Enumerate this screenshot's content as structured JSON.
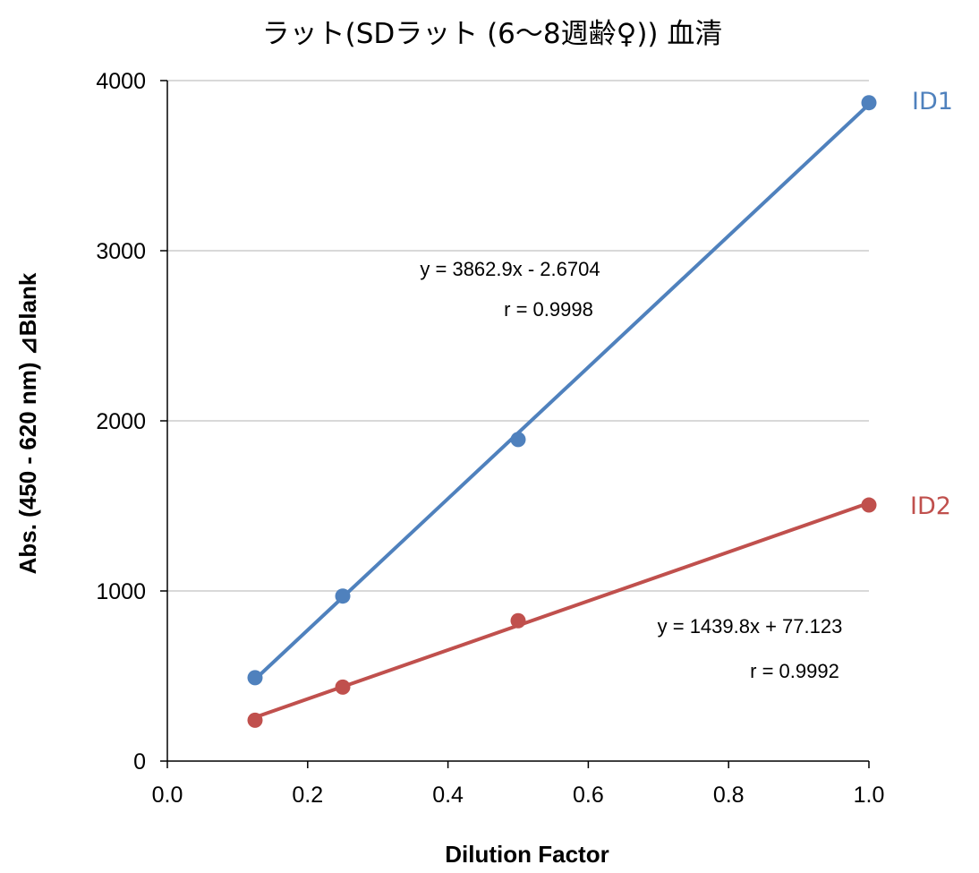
{
  "chart_data": {
    "type": "scatter",
    "title": "ラット(SDラット (6～8週齢♀)) 血清",
    "xlabel": "Dilution Factor",
    "ylabel": "Abs. (450 - 620 nm) ⊿Blank",
    "xlim": [
      0,
      1
    ],
    "ylim": [
      0,
      4000
    ],
    "x_ticks": [
      0.0,
      0.2,
      0.4,
      0.6,
      0.8,
      1.0
    ],
    "x_tick_labels": [
      "0.0",
      "0.2",
      "0.4",
      "0.6",
      "0.8",
      "1.0"
    ],
    "y_ticks": [
      0,
      1000,
      2000,
      3000,
      4000
    ],
    "y_tick_labels": [
      "0",
      "1000",
      "2000",
      "3000",
      "4000"
    ],
    "grid": {
      "y": true,
      "x": false
    },
    "legend": "inline-right",
    "series": [
      {
        "name": "ID1",
        "color": "#4F81BD",
        "x": [
          0.125,
          0.25,
          0.5,
          1.0
        ],
        "y": [
          490,
          970,
          1890,
          3870
        ],
        "trendline": {
          "slope": 3862.9,
          "intercept": -2.6704
        },
        "equation": "y = 3862.9x - 2.6704",
        "r_text": "r = 0.9998"
      },
      {
        "name": "ID2",
        "color": "#C0504D",
        "x": [
          0.125,
          0.25,
          0.5,
          1.0
        ],
        "y": [
          240,
          435,
          825,
          1505
        ],
        "trendline": {
          "slope": 1439.8,
          "intercept": 77.123
        },
        "equation": "y = 1439.8x + 77.123",
        "r_text": "r = 0.9992"
      }
    ]
  }
}
